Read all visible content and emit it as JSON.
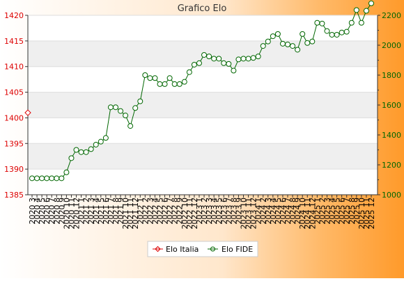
{
  "chart_data": {
    "type": "line",
    "title": "Grafico Elo",
    "xlabel": "",
    "ylabel": "",
    "categories": [
      "2020 3",
      "2020 4",
      "2020 5",
      "2020 6",
      "2020 7",
      "2020 8",
      "2020 9",
      "2020 10",
      "2020 11",
      "2020 12",
      "2021 1",
      "2021 2",
      "2021 3",
      "2021 4",
      "2021 5",
      "2021 6",
      "2021 7",
      "2021 8",
      "2021 9",
      "2021 10",
      "2021 11",
      "2021 12",
      "2022 1",
      "2022 2",
      "2022 3",
      "2022 4",
      "2022 5",
      "2022 6",
      "2022 7",
      "2022 8",
      "2022 9",
      "2022 10",
      "2022 11",
      "2022 12",
      "2023 1",
      "2023 2",
      "2023 3",
      "2023 4",
      "2023 5",
      "2023 6",
      "2023 7",
      "2023 8",
      "2023 9",
      "2023 10",
      "2023 11",
      "2023 12",
      "2024 1",
      "2024 2",
      "2024 3",
      "2024 4",
      "2024 5",
      "2024 6",
      "2024 7",
      "2024 8",
      "2024 9",
      "2024 10",
      "2024 11",
      "2024 12",
      "2025 1",
      "2025 2",
      "2025 3",
      "2025 4",
      "2025 5",
      "2025 6",
      "2025 7",
      "2025 8",
      "2025 9",
      "2025 10",
      "2025 11",
      "2025 12"
    ],
    "y_left": {
      "ticks": [
        1385,
        1390,
        1395,
        1400,
        1405,
        1410,
        1415,
        1420
      ],
      "min": 1385,
      "max": 1420,
      "color": "#dd0000"
    },
    "y_right": {
      "ticks": [
        1000,
        1200,
        1400,
        1600,
        1800,
        2000,
        2200
      ],
      "min": 1000,
      "max": 2200,
      "color": "#006600"
    },
    "grid": true,
    "legend_position": "bottom-center",
    "series": [
      {
        "name": "Elo Italia",
        "axis": "left",
        "color": "#dd0000",
        "values": [
          1401,
          null,
          null,
          null,
          null,
          null,
          null,
          null,
          null,
          null,
          null,
          null,
          null,
          null,
          null,
          null,
          null,
          null,
          null,
          null,
          null,
          null,
          null,
          null,
          null,
          null,
          null,
          null,
          null,
          null,
          null,
          null,
          null,
          null,
          null,
          null,
          null,
          null,
          null,
          null,
          null,
          null,
          null,
          null,
          null,
          null,
          null,
          null,
          null,
          null,
          null,
          null,
          null,
          null,
          null,
          null,
          null,
          null,
          null,
          null,
          null,
          null,
          null,
          null,
          null,
          null,
          null,
          null,
          null,
          null
        ]
      },
      {
        "name": "Elo FIDE",
        "axis": "right",
        "color": "#006600",
        "values": [
          1110,
          1110,
          1110,
          1110,
          1110,
          1110,
          1110,
          1150,
          1245,
          1300,
          1285,
          1285,
          1305,
          1335,
          1355,
          1380,
          1585,
          1585,
          1560,
          1530,
          1460,
          1580,
          1625,
          1800,
          1780,
          1780,
          1740,
          1740,
          1780,
          1740,
          1740,
          1755,
          1820,
          1870,
          1880,
          1935,
          1925,
          1910,
          1910,
          1880,
          1875,
          1830,
          1905,
          1910,
          1910,
          1915,
          1925,
          1995,
          2025,
          2060,
          2075,
          2010,
          2005,
          1995,
          1970,
          2075,
          2015,
          2025,
          2150,
          2145,
          2095,
          2070,
          2070,
          2085,
          2090,
          2150,
          2235,
          2150,
          2230,
          2280
        ]
      }
    ]
  }
}
